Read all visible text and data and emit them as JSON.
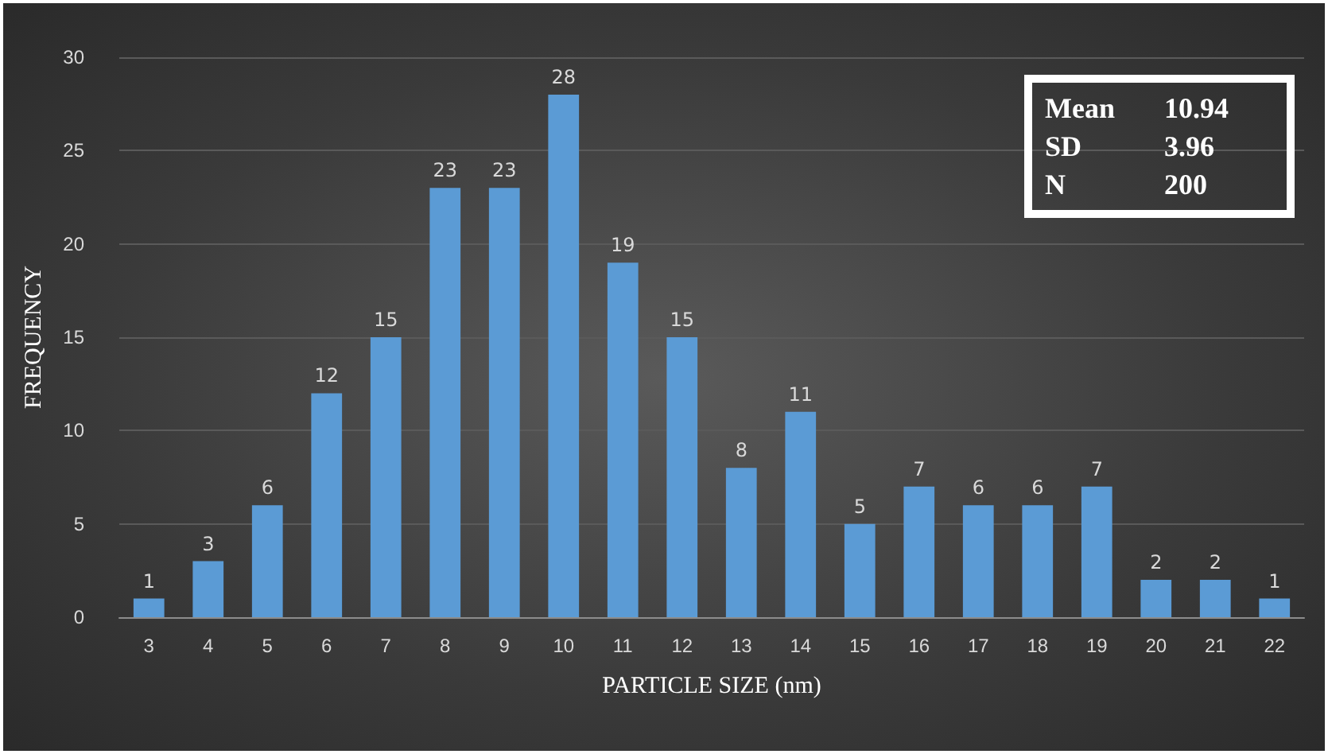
{
  "chart_data": {
    "type": "bar",
    "xlabel": "PARTICLE SIZE (nm)",
    "ylabel": "FREQUENCY",
    "categories": [
      "3",
      "4",
      "5",
      "6",
      "7",
      "8",
      "9",
      "10",
      "11",
      "12",
      "13",
      "14",
      "15",
      "16",
      "17",
      "18",
      "19",
      "20",
      "21",
      "22"
    ],
    "values": [
      1,
      3,
      6,
      12,
      15,
      23,
      23,
      28,
      19,
      15,
      8,
      11,
      5,
      7,
      6,
      6,
      7,
      2,
      2,
      1
    ],
    "color": "#5b9bd5",
    "ylim": [
      0,
      30
    ],
    "yticks": [
      0,
      5,
      10,
      15,
      20,
      25,
      30
    ],
    "grid": "y",
    "data_labels": true,
    "annotations": [
      "Mean",
      "10.94",
      "SD",
      "3.96",
      "N",
      "200"
    ]
  }
}
